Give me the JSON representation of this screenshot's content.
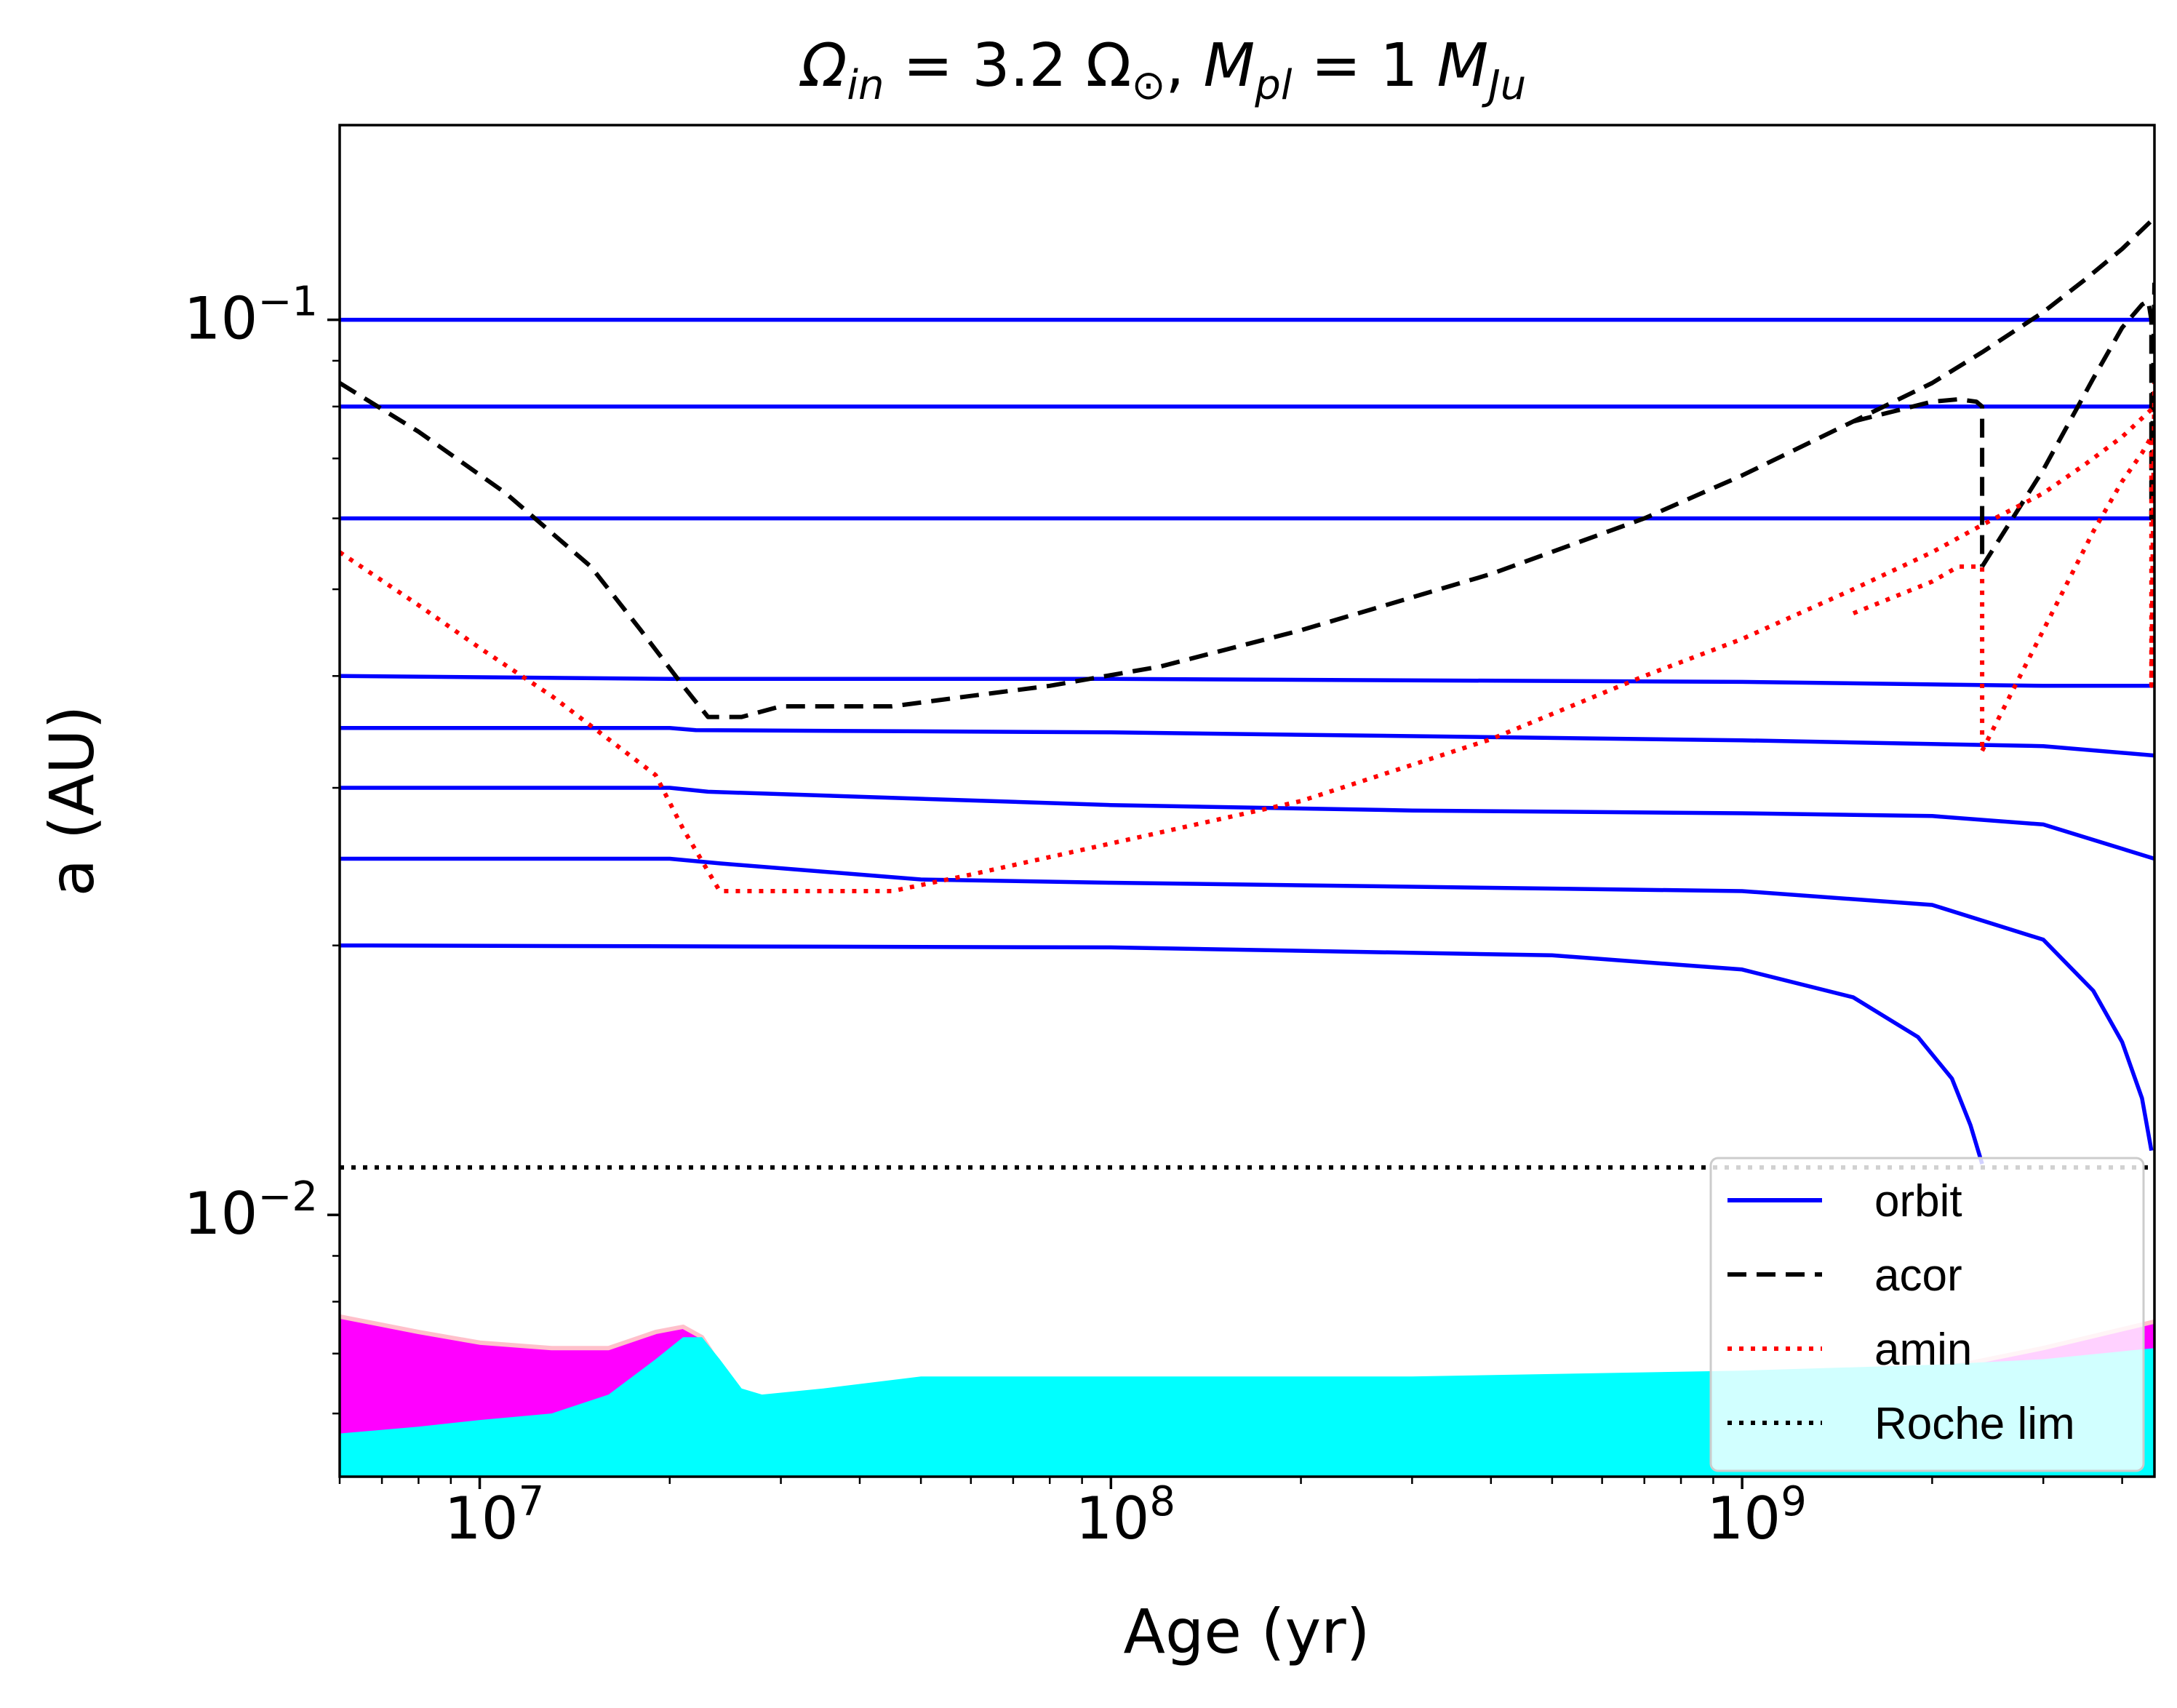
{
  "chart_data": {
    "type": "line",
    "title": {
      "omega_sym": "Ω",
      "omega_sub": "in",
      "eq1": " = 3.2 ",
      "sun_sym": "Ω",
      "sun_sub": "⊙",
      "sep": ", ",
      "m_sym": "M",
      "m_sub": "pl",
      "eq2": " = 1 ",
      "ju_sym": "M",
      "ju_sub": "Ju"
    },
    "xlabel": "Age (yr)",
    "ylabel": "a (AU)",
    "xscale": "log",
    "yscale": "log",
    "xlim": [
      6000000,
      4500000000
    ],
    "ylim": [
      0.0051,
      0.165
    ],
    "xticks": [
      {
        "value": 10000000,
        "base": "10",
        "exp": "7"
      },
      {
        "value": 100000000,
        "base": "10",
        "exp": "8"
      },
      {
        "value": 1000000000,
        "base": "10",
        "exp": "9"
      }
    ],
    "yticks": [
      {
        "value": 0.01,
        "base": "10",
        "exp": "−2"
      },
      {
        "value": 0.1,
        "base": "10",
        "exp": "−1"
      }
    ],
    "legend": {
      "position": "lower right",
      "entries": [
        {
          "label": "orbit",
          "color": "#0000ff",
          "style": "solid"
        },
        {
          "label": "acor",
          "color": "#000000",
          "style": "dashed"
        },
        {
          "label": "amin",
          "color": "#ff0000",
          "style": "dotted"
        },
        {
          "label": "Roche lim",
          "color": "#000000",
          "style": "dotted"
        }
      ]
    },
    "colors": {
      "orbit": "#0000ff",
      "acor": "#000000",
      "amin": "#ff0000",
      "roche": "#000000",
      "star_outer": "#ff00ff",
      "star_inner": "#00ffff",
      "star_edge": "#ffc0cb"
    },
    "orbits": [
      {
        "name": "orbit 0.100",
        "x": [
          6000000,
          4500000000
        ],
        "y": [
          0.1,
          0.1
        ]
      },
      {
        "name": "orbit 0.080",
        "x": [
          6000000,
          4500000000
        ],
        "y": [
          0.08,
          0.08
        ]
      },
      {
        "name": "orbit 0.060",
        "x": [
          6000000,
          4500000000
        ],
        "y": [
          0.06,
          0.06
        ]
      },
      {
        "name": "orbit 0.040",
        "x": [
          6000000,
          20000000,
          100000000,
          1000000000,
          3000000000,
          4500000000
        ],
        "y": [
          0.04,
          0.0397,
          0.0397,
          0.0394,
          0.039,
          0.039
        ]
      },
      {
        "name": "orbit 0.035",
        "x": [
          6000000,
          20000000,
          22000000,
          100000000,
          1000000000,
          3000000000,
          4500000000
        ],
        "y": [
          0.035,
          0.035,
          0.0348,
          0.0346,
          0.0339,
          0.0334,
          0.0326
        ]
      },
      {
        "name": "orbit 0.030",
        "x": [
          6000000,
          20000000,
          23000000,
          100000000,
          300000000,
          1000000000,
          2000000000,
          3000000000,
          4500000000
        ],
        "y": [
          0.03,
          0.03,
          0.0297,
          0.0287,
          0.0283,
          0.0281,
          0.0279,
          0.0273,
          0.025
        ]
      },
      {
        "name": "orbit 0.025",
        "x": [
          6000000,
          20000000,
          24000000,
          50000000,
          100000000,
          1000000000,
          2000000000,
          3000000000,
          3600000000,
          4000000000,
          4300000000,
          4450000000
        ],
        "y": [
          0.025,
          0.025,
          0.0247,
          0.0237,
          0.0235,
          0.023,
          0.0222,
          0.0203,
          0.0178,
          0.0156,
          0.0135,
          0.0118
        ]
      },
      {
        "name": "orbit 0.020",
        "x": [
          6000000,
          100000000,
          500000000,
          1000000000,
          1500000000,
          1900000000,
          2150000000,
          2300000000,
          2400000000
        ],
        "y": [
          0.02,
          0.0199,
          0.0195,
          0.0188,
          0.0175,
          0.0158,
          0.0142,
          0.0126,
          0.0114
        ]
      }
    ],
    "acor": {
      "x": [
        6000000,
        8000000,
        11000000,
        15000000,
        18000000,
        21000000,
        23000000,
        26000000,
        30000000,
        35000000,
        45000000,
        60000000,
        80000000,
        120000000,
        200000000,
        400000000,
        700000000,
        1000000000,
        1500000000,
        2000000000,
        2400000000,
        3000000000,
        3500000000,
        4000000000,
        4500000000
      ],
      "y": [
        0.085,
        0.075,
        0.064,
        0.053,
        0.045,
        0.039,
        0.036,
        0.036,
        0.037,
        0.037,
        0.037,
        0.038,
        0.039,
        0.041,
        0.045,
        0.052,
        0.06,
        0.067,
        0.077,
        0.085,
        0.092,
        0.102,
        0.111,
        0.12,
        0.13
      ]
    },
    "amin": {
      "x": [
        6000000,
        8000000,
        10000000,
        13000000,
        16000000,
        19000000,
        21000000,
        24000000,
        28000000,
        35000000,
        45000000,
        60000000,
        100000000,
        200000000,
        400000000,
        700000000,
        1000000000,
        1500000000,
        2000000000,
        2400000000,
        3000000000,
        3500000000,
        4000000000,
        4500000000
      ],
      "y": [
        0.055,
        0.048,
        0.043,
        0.038,
        0.034,
        0.031,
        0.027,
        0.023,
        0.023,
        0.023,
        0.023,
        0.024,
        0.026,
        0.029,
        0.034,
        0.04,
        0.044,
        0.05,
        0.055,
        0.059,
        0.064,
        0.069,
        0.074,
        0.08
      ]
    },
    "acor_branches": [
      {
        "x": [
          1500000000,
          2000000000,
          2200000000,
          2350000000,
          2400000000,
          2400000000
        ],
        "y": [
          0.077,
          0.081,
          0.0815,
          0.081,
          0.08,
          0.053
        ]
      },
      {
        "x": [
          2400000000,
          3000000000,
          3600000000,
          4000000000,
          4300000000,
          4400000000,
          4450000000,
          4450000000,
          4500000000
        ],
        "y": [
          0.053,
          0.068,
          0.086,
          0.098,
          0.104,
          0.105,
          0.1,
          0.06,
          0.11
        ]
      }
    ],
    "amin_branches": [
      {
        "x": [
          1500000000,
          2000000000,
          2200000000,
          2400000000,
          2400000000
        ],
        "y": [
          0.047,
          0.051,
          0.053,
          0.053,
          0.033
        ]
      },
      {
        "x": [
          2400000000,
          3000000000,
          3600000000,
          4000000000,
          4300000000,
          4450000000,
          4450000000,
          4500000000
        ],
        "y": [
          0.033,
          0.045,
          0.058,
          0.066,
          0.071,
          0.074,
          0.039,
          0.085
        ]
      }
    ],
    "roche_limit": {
      "y": 0.0113
    },
    "star_outer": {
      "x": [
        6000000,
        8000000,
        10000000,
        13000000,
        16000000,
        19000000,
        21000000,
        22500000,
        24000000,
        26000000,
        28000000,
        35000000,
        60000000,
        100000000,
        300000000,
        1000000000,
        2000000000,
        3000000000,
        4500000000
      ],
      "y": [
        0.0077,
        0.0074,
        0.0072,
        0.0071,
        0.0071,
        0.0074,
        0.0075,
        0.0073,
        0.0068,
        0.0063,
        0.0062,
        0.0062,
        0.0062,
        0.0062,
        0.0063,
        0.0064,
        0.0067,
        0.0071,
        0.0076
      ]
    },
    "star_inner": {
      "x": [
        6000000,
        8000000,
        10000000,
        13000000,
        16000000,
        19000000,
        21000000,
        22500000,
        24000000,
        26000000,
        28000000,
        35000000,
        50000000,
        100000000,
        300000000,
        1000000000,
        2000000000,
        3000000000,
        4500000000
      ],
      "y": [
        0.0057,
        0.0058,
        0.0059,
        0.006,
        0.0063,
        0.0069,
        0.0073,
        0.0073,
        0.0069,
        0.0064,
        0.0063,
        0.0064,
        0.0066,
        0.0066,
        0.0066,
        0.0067,
        0.0068,
        0.0069,
        0.0071
      ]
    }
  }
}
